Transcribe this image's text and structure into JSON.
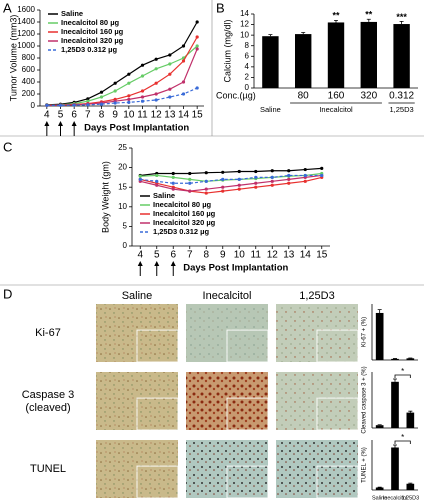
{
  "panels": [
    "A",
    "B",
    "C",
    "D"
  ],
  "microscopy": {
    "columns": [
      "Saline",
      "Inecalcitol",
      "1,25D3"
    ],
    "rows": [
      "Ki-67",
      "Caspase 3\n(cleaved)",
      "TUNEL"
    ]
  },
  "chart_data": [
    {
      "type": "line",
      "ylabel": "Tumor Volume (mm3)",
      "xlabel": "Days Post Implantation",
      "x": [
        4,
        5,
        6,
        7,
        8,
        9,
        10,
        11,
        12,
        13,
        14,
        15
      ],
      "xlim": [
        3.5,
        15.5
      ],
      "xticks": [
        4,
        5,
        6,
        7,
        8,
        9,
        10,
        11,
        12,
        13,
        14,
        15
      ],
      "ylim": [
        0,
        1600
      ],
      "yticks": [
        0,
        200,
        400,
        600,
        800,
        1000,
        1200,
        1400,
        1600
      ],
      "legend": "upper left",
      "series": [
        {
          "name": "Saline",
          "color": "#000000",
          "style": "solid",
          "values": [
            20,
            30,
            60,
            120,
            230,
            380,
            530,
            680,
            780,
            850,
            1000,
            1400
          ]
        },
        {
          "name": "Inecalcitol 80 µg",
          "color": "#66cc66",
          "style": "solid",
          "values": [
            15,
            20,
            40,
            80,
            150,
            250,
            380,
            500,
            620,
            700,
            800,
            1000
          ]
        },
        {
          "name": "Inecalcitol 160 µg",
          "color": "#e8312f",
          "style": "solid",
          "values": [
            10,
            15,
            25,
            40,
            70,
            110,
            170,
            250,
            380,
            530,
            750,
            1150
          ]
        },
        {
          "name": "Inecalcitol 320 µg",
          "color": "#c0306a",
          "style": "solid",
          "values": [
            10,
            12,
            20,
            30,
            50,
            80,
            110,
            150,
            200,
            280,
            400,
            950
          ]
        },
        {
          "name": "1,25D3 0.312 µg",
          "color": "#3a6bd8",
          "style": "dashed",
          "values": [
            10,
            10,
            15,
            20,
            30,
            50,
            60,
            80,
            100,
            150,
            200,
            300
          ]
        }
      ]
    },
    {
      "type": "bar",
      "ylabel": "Calcium (mg/dl)",
      "xlabel": "Conc.(µg)",
      "categories": [
        null,
        "80",
        "160",
        "320",
        "0.312"
      ],
      "values": [
        9.8,
        10.2,
        12.4,
        12.5,
        12.1
      ],
      "errors": [
        0.3,
        0.3,
        0.4,
        0.5,
        0.5
      ],
      "annotations": [
        null,
        null,
        "**",
        "**",
        "***"
      ],
      "color": "#000000",
      "groups": [
        {
          "name": "Saline",
          "from": 0,
          "to": 0
        },
        {
          "name": "Inecalcitol",
          "from": 1,
          "to": 3
        },
        {
          "name": "1,25D3",
          "from": 4,
          "to": 4
        }
      ],
      "ylim": [
        0,
        14
      ],
      "yticks": [
        0,
        2,
        4,
        6,
        8,
        10,
        12,
        14
      ]
    },
    {
      "type": "line",
      "ylabel": "Body Weight (gm)",
      "xlabel": "Days Post Implantation",
      "x": [
        4,
        5,
        6,
        7,
        8,
        9,
        10,
        11,
        12,
        13,
        14,
        15
      ],
      "xlim": [
        3.5,
        15.5
      ],
      "xticks": [
        4,
        5,
        6,
        7,
        8,
        9,
        10,
        11,
        12,
        13,
        14,
        15
      ],
      "ylim": [
        0,
        25
      ],
      "yticks": [
        0,
        5,
        10,
        15,
        20,
        25
      ],
      "legend": "lower left",
      "series": [
        {
          "name": "Saline",
          "color": "#000000",
          "style": "solid",
          "values": [
            18,
            18.5,
            18.5,
            18.5,
            18.7,
            18.8,
            19,
            19,
            19.2,
            19.2,
            19.5,
            19.8
          ]
        },
        {
          "name": "Inecalcitol 80 µg",
          "color": "#66cc66",
          "style": "solid",
          "values": [
            17.8,
            18,
            17.5,
            17,
            16.5,
            16.8,
            17,
            17.2,
            17.5,
            17.8,
            18,
            18.5
          ]
        },
        {
          "name": "Inecalcitol 160 µg",
          "color": "#e8312f",
          "style": "solid",
          "values": [
            17,
            16,
            15,
            14,
            13.5,
            14,
            14.5,
            15,
            15.5,
            16,
            16.5,
            17.5
          ]
        },
        {
          "name": "Inecalcitol 320 µg",
          "color": "#c0306a",
          "style": "solid",
          "values": [
            16.5,
            15.5,
            14.5,
            14,
            14.5,
            15,
            15.5,
            16,
            16.5,
            17,
            17.5,
            18
          ]
        },
        {
          "name": "1,25D3 0.312 µg",
          "color": "#3a6bd8",
          "style": "dashed",
          "values": [
            17,
            16.5,
            16,
            16,
            16.5,
            17,
            17,
            17.5,
            17.5,
            18,
            18,
            18
          ]
        }
      ]
    },
    {
      "type": "bar",
      "ylabel": "Ki-67 + (%)",
      "categories": [
        null,
        null,
        null
      ],
      "values": [
        42,
        1,
        1.5
      ],
      "errors": [
        3,
        0.3,
        0.3
      ],
      "color": "#000000",
      "ylim": [
        0,
        50
      ]
    },
    {
      "type": "bar",
      "ylabel": "Cleaved caspase 3 + (%)",
      "categories": [
        null,
        null,
        null
      ],
      "values": [
        2,
        33,
        11
      ],
      "errors": [
        0.3,
        2,
        1
      ],
      "color": "#000000",
      "ylim": [
        0,
        40
      ],
      "brackets": [
        {
          "from": 1,
          "to": 2,
          "label": "*"
        }
      ]
    },
    {
      "type": "bar",
      "ylabel": "TUNEL + (%)",
      "categories": [
        "Saline",
        "Inecalcitol",
        "1,25D3"
      ],
      "values": [
        2,
        34,
        5
      ],
      "errors": [
        0.3,
        2,
        0.5
      ],
      "color": "#000000",
      "ylim": [
        0,
        40
      ],
      "brackets": [
        {
          "from": 1,
          "to": 2,
          "label": "*"
        }
      ]
    }
  ]
}
